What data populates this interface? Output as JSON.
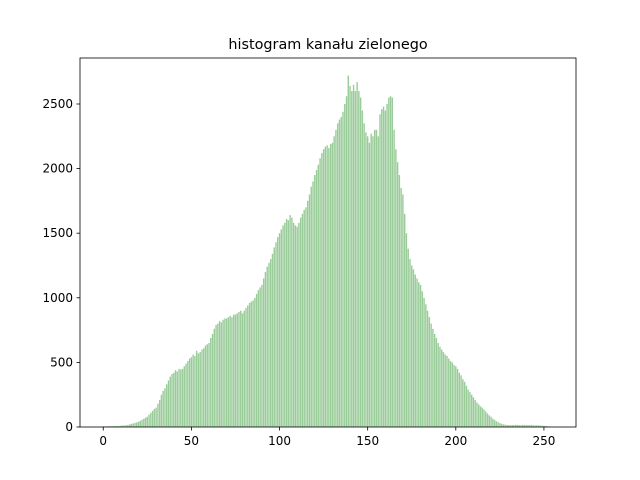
{
  "chart_data": {
    "type": "bar",
    "title": "histogram kanału zielonego",
    "color": "#99cc99",
    "x": [
      0,
      1,
      2,
      3,
      4,
      5,
      6,
      7,
      8,
      9,
      10,
      11,
      12,
      13,
      14,
      15,
      16,
      17,
      18,
      19,
      20,
      21,
      22,
      23,
      24,
      25,
      26,
      27,
      28,
      29,
      30,
      31,
      32,
      33,
      34,
      35,
      36,
      37,
      38,
      39,
      40,
      41,
      42,
      43,
      44,
      45,
      46,
      47,
      48,
      49,
      50,
      51,
      52,
      53,
      54,
      55,
      56,
      57,
      58,
      59,
      60,
      61,
      62,
      63,
      64,
      65,
      66,
      67,
      68,
      69,
      70,
      71,
      72,
      73,
      74,
      75,
      76,
      77,
      78,
      79,
      80,
      81,
      82,
      83,
      84,
      85,
      86,
      87,
      88,
      89,
      90,
      91,
      92,
      93,
      94,
      95,
      96,
      97,
      98,
      99,
      100,
      101,
      102,
      103,
      104,
      105,
      106,
      107,
      108,
      109,
      110,
      111,
      112,
      113,
      114,
      115,
      116,
      117,
      118,
      119,
      120,
      121,
      122,
      123,
      124,
      125,
      126,
      127,
      128,
      129,
      130,
      131,
      132,
      133,
      134,
      135,
      136,
      137,
      138,
      139,
      140,
      141,
      142,
      143,
      144,
      145,
      146,
      147,
      148,
      149,
      150,
      151,
      152,
      153,
      154,
      155,
      156,
      157,
      158,
      159,
      160,
      161,
      162,
      163,
      164,
      165,
      166,
      167,
      168,
      169,
      170,
      171,
      172,
      173,
      174,
      175,
      176,
      177,
      178,
      179,
      180,
      181,
      182,
      183,
      184,
      185,
      186,
      187,
      188,
      189,
      190,
      191,
      192,
      193,
      194,
      195,
      196,
      197,
      198,
      199,
      200,
      201,
      202,
      203,
      204,
      205,
      206,
      207,
      208,
      209,
      210,
      211,
      212,
      213,
      214,
      215,
      216,
      217,
      218,
      219,
      220,
      221,
      222,
      223,
      224,
      225,
      226,
      227,
      228,
      229,
      230,
      231,
      232,
      233,
      234,
      235,
      236,
      237,
      238,
      239,
      240,
      241,
      242,
      243,
      244,
      245,
      246,
      247,
      248,
      249,
      250,
      251,
      252,
      253,
      254,
      255
    ],
    "values": [
      5,
      4,
      6,
      5,
      7,
      6,
      8,
      7,
      9,
      8,
      10,
      12,
      11,
      14,
      16,
      20,
      24,
      28,
      32,
      36,
      40,
      48,
      56,
      64,
      72,
      80,
      95,
      110,
      125,
      140,
      150,
      180,
      210,
      250,
      280,
      300,
      330,
      360,
      390,
      410,
      420,
      440,
      430,
      450,
      445,
      450,
      470,
      490,
      510,
      530,
      540,
      560,
      550,
      590,
      570,
      580,
      600,
      610,
      630,
      640,
      650,
      690,
      720,
      760,
      790,
      800,
      820,
      810,
      830,
      840,
      840,
      850,
      860,
      850,
      870,
      870,
      880,
      890,
      900,
      880,
      900,
      920,
      940,
      960,
      970,
      980,
      1000,
      1030,
      1060,
      1080,
      1100,
      1150,
      1200,
      1240,
      1270,
      1300,
      1340,
      1390,
      1430,
      1470,
      1500,
      1530,
      1560,
      1580,
      1610,
      1600,
      1640,
      1620,
      1580,
      1560,
      1550,
      1580,
      1620,
      1650,
      1680,
      1700,
      1750,
      1800,
      1860,
      1900,
      1950,
      1990,
      2030,
      2080,
      2120,
      2150,
      2170,
      2180,
      2160,
      2190,
      2200,
      2250,
      2300,
      2350,
      2380,
      2400,
      2440,
      2500,
      2560,
      2720,
      2640,
      2600,
      2650,
      2600,
      2670,
      2600,
      2550,
      2450,
      2350,
      2280,
      2250,
      2200,
      2270,
      2250,
      2300,
      2300,
      2250,
      2420,
      2460,
      2480,
      2450,
      2500,
      2550,
      2560,
      2550,
      2300,
      2150,
      2050,
      1950,
      1850,
      1800,
      1650,
      1500,
      1380,
      1300,
      1250,
      1220,
      1180,
      1150,
      1120,
      1100,
      1050,
      1000,
      950,
      900,
      850,
      800,
      760,
      720,
      690,
      650,
      620,
      600,
      580,
      560,
      550,
      530,
      510,
      500,
      480,
      470,
      450,
      420,
      400,
      370,
      350,
      320,
      290,
      270,
      250,
      230,
      210,
      190,
      175,
      160,
      150,
      135,
      120,
      105,
      90,
      80,
      65,
      55,
      45,
      38,
      30,
      25,
      20,
      18,
      16,
      15,
      14,
      16,
      15,
      17,
      16,
      15,
      14,
      16,
      15,
      15,
      16,
      14,
      15,
      13,
      12,
      14,
      12,
      11,
      10,
      10,
      8,
      6,
      4,
      2,
      1
    ],
    "xlim": [
      -13.19,
      268.19
    ],
    "ylim": [
      0,
      2856
    ],
    "xticks": [
      0,
      50,
      100,
      150,
      200,
      250
    ],
    "yticks": [
      0,
      500,
      1000,
      1500,
      2000,
      2500
    ]
  }
}
